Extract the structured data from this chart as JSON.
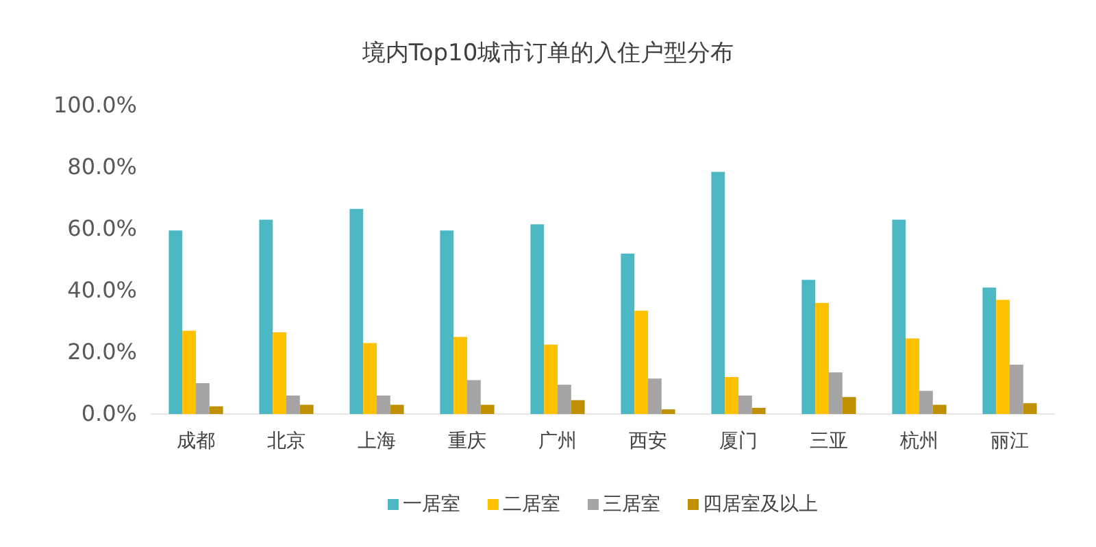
{
  "chart_data": {
    "type": "bar",
    "title": "境内Top10城市订单的入住户型分布",
    "categories": [
      "成都",
      "北京",
      "上海",
      "重庆",
      "广州",
      "西安",
      "厦门",
      "三亚",
      "杭州",
      "丽江"
    ],
    "series": [
      {
        "name": "一居室",
        "color": "#4bb8c4",
        "values": [
          59.5,
          63,
          66.5,
          59.5,
          61.5,
          52,
          78.5,
          43.5,
          63,
          41
        ]
      },
      {
        "name": "二居室",
        "color": "#ffc000",
        "values": [
          27,
          26.5,
          23,
          25,
          22.5,
          33.5,
          12,
          36,
          24.5,
          37
        ]
      },
      {
        "name": "三居室",
        "color": "#a5a5a5",
        "values": [
          10,
          6,
          6,
          11,
          9.5,
          11.5,
          6,
          13.5,
          7.5,
          16
        ]
      },
      {
        "name": "四居室及以上",
        "color": "#bf9000",
        "values": [
          2.5,
          3,
          3,
          3,
          4.5,
          1.5,
          2,
          5.5,
          3,
          3.5
        ]
      }
    ],
    "ylim": [
      0,
      100
    ],
    "yticks": [
      {
        "value": 0,
        "label": "0.0%"
      },
      {
        "value": 20,
        "label": "20.0%"
      },
      {
        "value": 40,
        "label": "40.0%"
      },
      {
        "value": 60,
        "label": "60.0%"
      },
      {
        "value": 80,
        "label": "80.0%"
      },
      {
        "value": 100,
        "label": "100.0%"
      }
    ],
    "legend": "bottom"
  }
}
